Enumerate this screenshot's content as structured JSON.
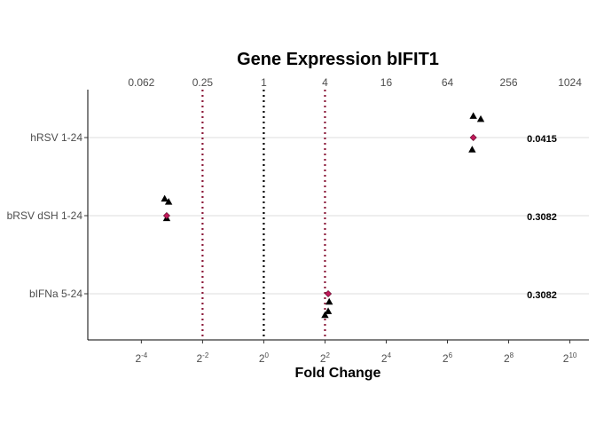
{
  "chart_data": {
    "type": "scatter",
    "title": "Gene Expression bIFIT1",
    "xlabel": "Fold Change",
    "ylabel": "",
    "x_scale": "log2",
    "xlim": [
      0.0186,
      1575
    ],
    "top_axis_ticks": [
      {
        "value": 0.0625,
        "label": "0.062"
      },
      {
        "value": 0.25,
        "label": "0.25"
      },
      {
        "value": 1,
        "label": "1"
      },
      {
        "value": 4,
        "label": "4"
      },
      {
        "value": 16,
        "label": "16"
      },
      {
        "value": 64,
        "label": "64"
      },
      {
        "value": 256,
        "label": "256"
      },
      {
        "value": 1024,
        "label": "1024"
      }
    ],
    "bottom_axis_ticks": [
      {
        "value": 0.0625,
        "base": "2",
        "exp": "-4"
      },
      {
        "value": 0.25,
        "base": "2",
        "exp": "-2"
      },
      {
        "value": 1,
        "base": "2",
        "exp": "0"
      },
      {
        "value": 4,
        "base": "2",
        "exp": "2"
      },
      {
        "value": 16,
        "base": "2",
        "exp": "4"
      },
      {
        "value": 64,
        "base": "2",
        "exp": "6"
      },
      {
        "value": 256,
        "base": "2",
        "exp": "8"
      },
      {
        "value": 1024,
        "base": "2",
        "exp": "10"
      }
    ],
    "categories": [
      "hRSV 1-24",
      "bRSV dSH 1-24",
      "bIFNa 5-24"
    ],
    "reference_lines": [
      {
        "x": 0.25,
        "color": "#8b1a3a"
      },
      {
        "x": 1,
        "color": "#000000"
      },
      {
        "x": 4,
        "color": "#8b1a3a"
      }
    ],
    "series": [
      {
        "marker": "triangle",
        "color": "#000000",
        "points": [
          {
            "category": "hRSV 1-24",
            "x": 115,
            "offset": 0.28
          },
          {
            "category": "hRSV 1-24",
            "x": 136,
            "offset": 0.24
          },
          {
            "category": "hRSV 1-24",
            "x": 112,
            "offset": -0.15
          },
          {
            "category": "bRSV dSH 1-24",
            "x": 0.106,
            "offset": 0.22
          },
          {
            "category": "bRSV dSH 1-24",
            "x": 0.116,
            "offset": 0.18
          },
          {
            "category": "bRSV dSH 1-24",
            "x": 0.111,
            "offset": -0.03
          },
          {
            "category": "bIFNa 5-24",
            "x": 4.4,
            "offset": -0.1
          },
          {
            "category": "bIFNa 5-24",
            "x": 4.3,
            "offset": -0.22
          },
          {
            "category": "bIFNa 5-24",
            "x": 4.0,
            "offset": -0.27
          }
        ]
      },
      {
        "marker": "diamond",
        "color": "#c0185a",
        "points": [
          {
            "category": "hRSV 1-24",
            "x": 115,
            "offset": 0
          },
          {
            "category": "bRSV dSH 1-24",
            "x": 0.111,
            "offset": 0
          },
          {
            "category": "bIFNa 5-24",
            "x": 4.3,
            "offset": 0
          }
        ]
      }
    ],
    "p_values": [
      {
        "category": "hRSV 1-24",
        "label": "0.0415"
      },
      {
        "category": "bRSV dSH 1-24",
        "label": "0.3082"
      },
      {
        "category": "bIFNa 5-24",
        "label": "0.3082"
      }
    ],
    "grid": "horizontal-major"
  }
}
